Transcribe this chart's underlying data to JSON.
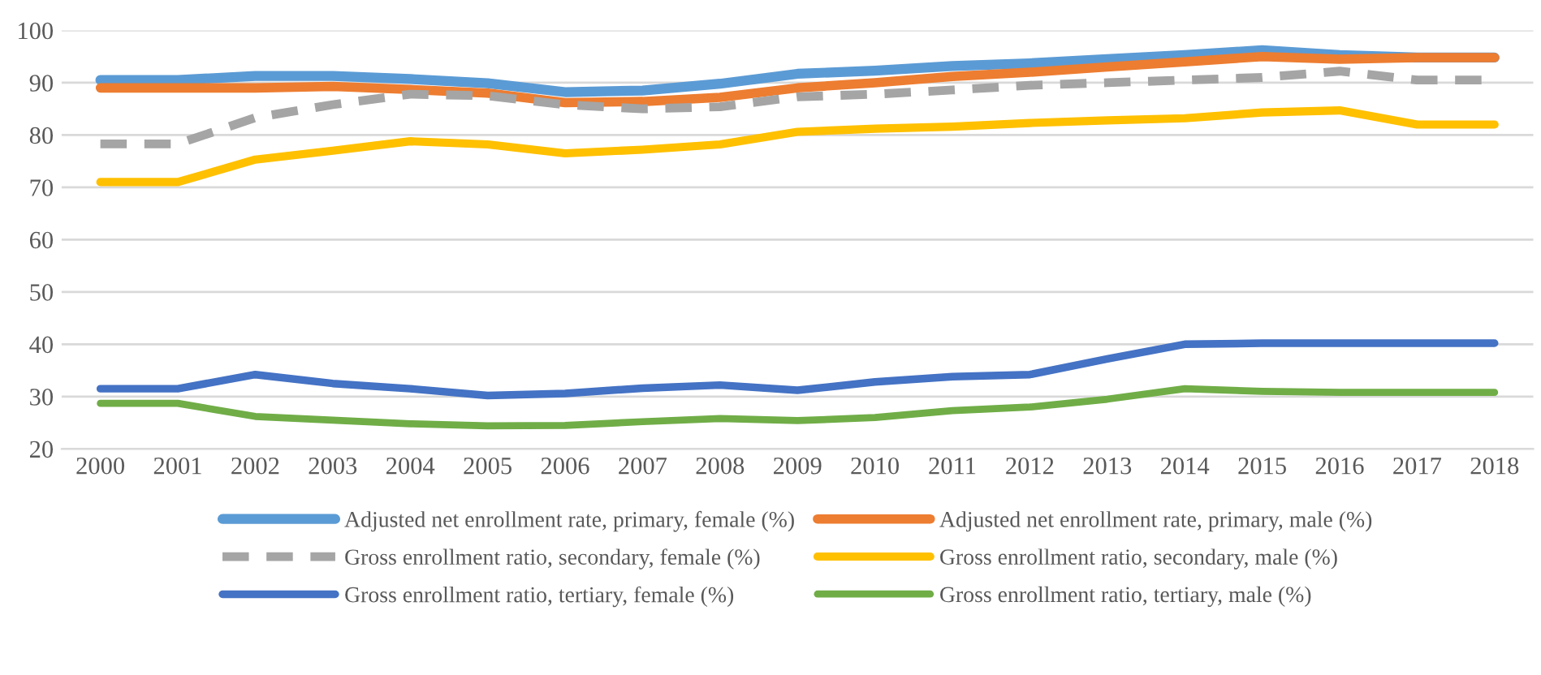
{
  "chart_data": {
    "type": "line",
    "categories": [
      "2000",
      "2001",
      "2002",
      "2003",
      "2004",
      "2005",
      "2006",
      "2007",
      "2008",
      "2009",
      "2010",
      "2011",
      "2012",
      "2013",
      "2014",
      "2015",
      "2016",
      "2017",
      "2018"
    ],
    "series": [
      {
        "name": "Adjusted net enrollment rate, primary, female (%)",
        "color": "#5b9bd5",
        "values": [
          90.5,
          90.5,
          91.3,
          91.3,
          90.7,
          89.9,
          88.2,
          88.5,
          89.8,
          91.7,
          92.3,
          93.2,
          93.7,
          94.5,
          95.3,
          96.2,
          95.3,
          94.8,
          94.8
        ]
      },
      {
        "name": "Adjusted net enrollment rate, primary, male (%)",
        "color": "#ed7d31",
        "values": [
          89,
          89,
          89,
          89.3,
          88.7,
          88,
          86.2,
          86.4,
          87.2,
          89,
          90,
          91.2,
          92,
          93,
          94,
          95,
          94.5,
          94.8,
          94.8
        ]
      },
      {
        "name": "Gross enrollment ratio, secondary, female (%)",
        "color": "#a5a5a5",
        "line_style": "dashed",
        "values": [
          78.3,
          78.3,
          83.3,
          85.8,
          87.8,
          87.5,
          85.8,
          85,
          85.4,
          87.3,
          87.8,
          88.6,
          89.5,
          90,
          90.5,
          91,
          92.2,
          90.5,
          90.5
        ]
      },
      {
        "name": "Gross enrollment ratio, secondary, male (%)",
        "color": "#ffc000",
        "values": [
          71,
          71,
          75.3,
          77,
          78.8,
          78.2,
          76.5,
          77.2,
          78.2,
          80.6,
          81.2,
          81.6,
          82.3,
          82.8,
          83.2,
          84.3,
          84.7,
          82,
          82
        ]
      },
      {
        "name": "Gross enrollment ratio, tertiary, female (%)",
        "color": "#4472c4",
        "values": [
          31.5,
          31.5,
          34.2,
          32.5,
          31.5,
          30.2,
          30.6,
          31.6,
          32.2,
          31.2,
          32.8,
          33.8,
          34.2,
          37.2,
          40,
          40.2,
          40.2,
          40.2,
          40.2
        ]
      },
      {
        "name": "Gross enrollment ratio, tertiary, male (%)",
        "color": "#70ad47",
        "values": [
          28.7,
          28.7,
          26.2,
          25.5,
          24.8,
          24.4,
          24.5,
          25.2,
          25.8,
          25.4,
          26,
          27.3,
          28,
          29.5,
          31.5,
          31,
          30.8,
          30.8,
          30.8
        ]
      }
    ],
    "ylim": [
      20,
      100
    ],
    "yticks": [
      20,
      30,
      40,
      50,
      60,
      70,
      80,
      90,
      100
    ],
    "grid": "y",
    "legend": "bottom",
    "line_style": "solid",
    "marker": "none"
  }
}
